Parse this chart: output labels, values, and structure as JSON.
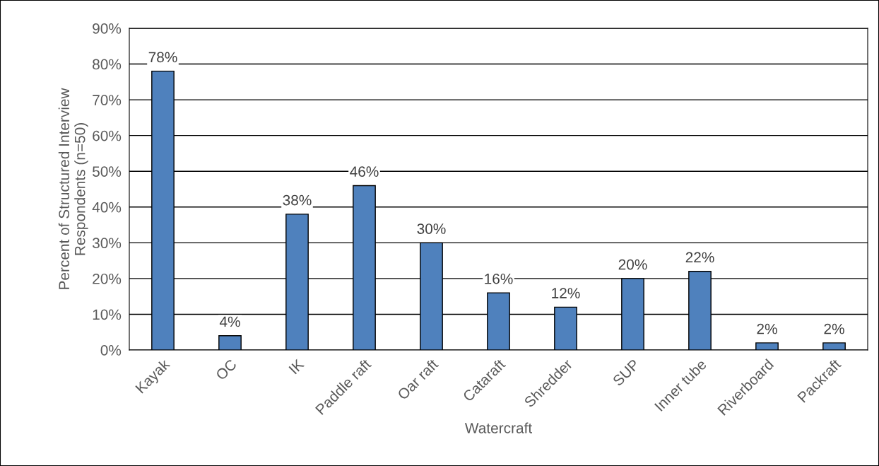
{
  "chart_data": {
    "type": "bar",
    "xlabel": "Watercraft",
    "ylabel": "Percent of Structured Interview\nRespondents (n=50)",
    "categories": [
      "Kayak",
      "OC",
      "IK",
      "Paddle raft",
      "Oar raft",
      "Cataraft",
      "Shredder",
      "SUP",
      "Inner tube",
      "Riverboard",
      "Packraft"
    ],
    "values": [
      78,
      4,
      38,
      46,
      30,
      16,
      12,
      20,
      22,
      2,
      2
    ],
    "value_labels": [
      "78%",
      "4%",
      "38%",
      "46%",
      "30%",
      "16%",
      "12%",
      "20%",
      "22%",
      "2%",
      "2%"
    ],
    "color": "#4f81bd",
    "ylim": [
      0,
      90
    ],
    "yticks": [
      {
        "value": 0,
        "label": "0%"
      },
      {
        "value": 10,
        "label": "10%"
      },
      {
        "value": 20,
        "label": "20%"
      },
      {
        "value": 30,
        "label": "30%"
      },
      {
        "value": 40,
        "label": "40%"
      },
      {
        "value": 50,
        "label": "50%"
      },
      {
        "value": 60,
        "label": "60%"
      },
      {
        "value": 70,
        "label": "70%"
      },
      {
        "value": 80,
        "label": "80%"
      },
      {
        "value": 90,
        "label": "90%"
      }
    ],
    "grid": "y",
    "legend": false
  }
}
